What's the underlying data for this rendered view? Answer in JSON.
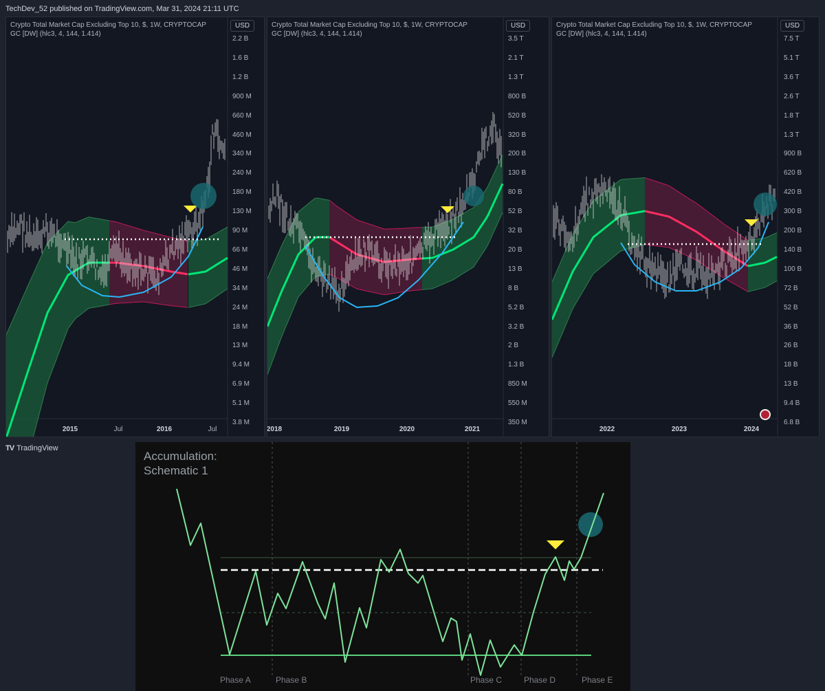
{
  "header": "TechDev_52 published on TradingView.com, Mar 31, 2024 21:11 UTC",
  "brand": "TradingView",
  "colors": {
    "bg": "#131722",
    "green": "#00e676",
    "pink": "#ff2e63",
    "blue": "#29b6f6",
    "teal": "#1a6b73",
    "yellow": "#ffeb3b"
  },
  "panels": [
    {
      "title_line1": "Crypto Total Market Cap Excluding Top 10, $, 1W, CRYPTOCAP",
      "title_line2": "GC [DW] (hlc3, 4, 144, 1.414)",
      "currency": "USD",
      "yticks": [
        "2.2 B",
        "1.6 B",
        "1.2 B",
        "900 M",
        "660 M",
        "460 M",
        "340 M",
        "240 M",
        "180 M",
        "130 M",
        "90 M",
        "66 M",
        "46 M",
        "34 M",
        "24 M",
        "18 M",
        "13 M",
        "9.4 M",
        "6.9 M",
        "5.1 M",
        "3.8 M"
      ],
      "xticks": [
        {
          "label": "2015",
          "bold": true
        },
        {
          "label": "Jul",
          "bold": false
        },
        {
          "label": "2016",
          "bold": true
        },
        {
          "label": "Jul",
          "bold": false
        }
      ]
    },
    {
      "title_line1": "Crypto Total Market Cap Excluding Top 10, $, 1W, CRYPTOCAP",
      "title_line2": "GC [DW] (hlc3, 4, 144, 1.414)",
      "currency": "USD",
      "yticks": [
        "3.5 T",
        "2.1 T",
        "1.3 T",
        "800 B",
        "520 B",
        "320 B",
        "200 B",
        "130 B",
        "80 B",
        "52 B",
        "32 B",
        "20 B",
        "13 B",
        "8 B",
        "5.2 B",
        "3.2 B",
        "2 B",
        "1.3 B",
        "850 M",
        "550 M",
        "350 M"
      ],
      "xticks": [
        {
          "label": "2018",
          "bold": true
        },
        {
          "label": "2019",
          "bold": true
        },
        {
          "label": "2020",
          "bold": true
        },
        {
          "label": "2021",
          "bold": true
        }
      ]
    },
    {
      "title_line1": "Crypto Total Market Cap Excluding Top 10, $, 1W, CRYPTOCAP",
      "title_line2": "GC [DW] (hlc3, 4, 144, 1.414)",
      "currency": "USD",
      "yticks": [
        "7.5 T",
        "5.1 T",
        "3.6 T",
        "2.6 T",
        "1.8 T",
        "1.3 T",
        "900 B",
        "620 B",
        "420 B",
        "300 B",
        "200 B",
        "140 B",
        "100 B",
        "72 B",
        "52 B",
        "36 B",
        "26 B",
        "18 B",
        "13 B",
        "9.4 B",
        "6.8 B"
      ],
      "xticks": [
        {
          "label": "2022",
          "bold": true
        },
        {
          "label": "2023",
          "bold": true
        },
        {
          "label": "2024",
          "bold": true
        }
      ]
    }
  ],
  "schematic": {
    "title_line1": "Accumulation:",
    "title_line2": "Schematic 1",
    "phases": [
      "Phase A",
      "Phase B",
      "Phase C",
      "Phase D",
      "Phase E"
    ]
  },
  "chart_data": [
    {
      "type": "line",
      "title": "Crypto Total Market Cap Excluding Top 10, $, 1W, CRYPTOCAP",
      "xticks": [
        "2015",
        "Jul",
        "2016",
        "Jul"
      ],
      "yscale": "log",
      "yrange": [
        "3.8 M",
        "2.2 B"
      ],
      "series": [
        {
          "name": "GC [DW] (hlc3, 4, 144, 1.414)",
          "values": []
        }
      ]
    },
    {
      "type": "line",
      "title": "Crypto Total Market Cap Excluding Top 10, $, 1W, CRYPTOCAP",
      "xticks": [
        "2018",
        "2019",
        "2020",
        "2021"
      ],
      "yscale": "log",
      "yrange": [
        "350 M",
        "3.5 T"
      ],
      "series": [
        {
          "name": "GC [DW] (hlc3, 4, 144, 1.414)",
          "values": []
        }
      ]
    },
    {
      "type": "line",
      "title": "Crypto Total Market Cap Excluding Top 10, $, 1W, CRYPTOCAP",
      "xticks": [
        "2022",
        "2023",
        "2024"
      ],
      "yscale": "log",
      "yrange": [
        "6.8 B",
        "7.5 T"
      ],
      "series": [
        {
          "name": "GC [DW] (hlc3, 4, 144, 1.414)",
          "values": []
        }
      ]
    }
  ]
}
